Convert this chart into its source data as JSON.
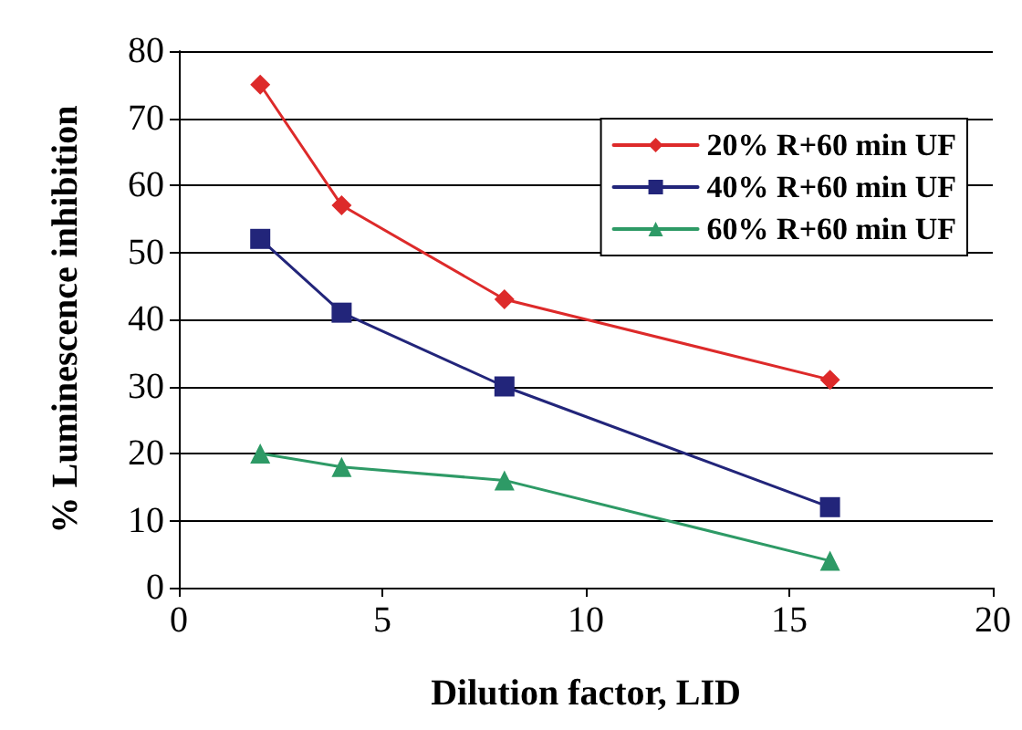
{
  "chart_data": {
    "type": "line",
    "xlabel": "Dilution factor, LID",
    "ylabel": "% Luminescence inhibition",
    "series": [
      {
        "name": "20% R+60 min UF",
        "color": "#dd2a2a",
        "marker": "diamond",
        "x": [
          2,
          4,
          8,
          16
        ],
        "values": [
          75,
          57,
          43,
          31
        ]
      },
      {
        "name": "40% R+60 min UF",
        "color": "#22257a",
        "marker": "square",
        "x": [
          2,
          4,
          8,
          16
        ],
        "values": [
          52,
          41,
          30,
          12
        ]
      },
      {
        "name": "60% R+60 min UF",
        "color": "#2e9a66",
        "marker": "triangle",
        "x": [
          2,
          4,
          8,
          16
        ],
        "values": [
          20,
          18,
          16,
          4
        ]
      }
    ],
    "xlim": [
      0,
      20
    ],
    "xticks": [
      0,
      5,
      10,
      15,
      20
    ],
    "ylim": [
      0,
      80
    ],
    "yticks": [
      0,
      10,
      20,
      30,
      40,
      50,
      60,
      70,
      80
    ],
    "grid": "y",
    "legend": "top right",
    "line_style": "solid"
  }
}
